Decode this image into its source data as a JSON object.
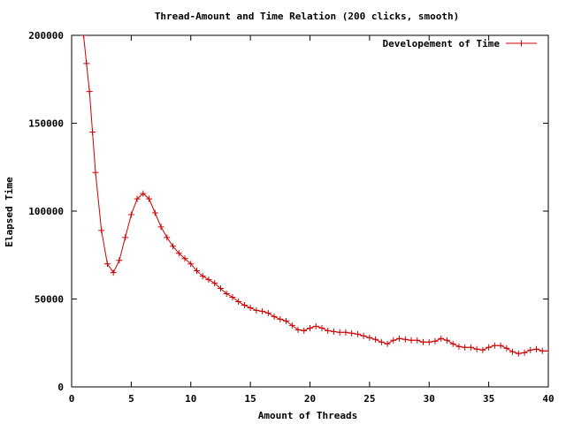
{
  "chart_data": {
    "type": "line",
    "title": "Thread-Amount and Time Relation (200 clicks, smooth)",
    "xlabel": "Amount of Threads",
    "ylabel": "Elapsed Time",
    "xlim": [
      0,
      40
    ],
    "ylim": [
      0,
      200000
    ],
    "xticks": [
      "0",
      "5",
      "10",
      "15",
      "20",
      "25",
      "30",
      "35",
      "40"
    ],
    "yticks": [
      "0",
      "50000",
      "100000",
      "150000",
      "200000"
    ],
    "grid": false,
    "legend_position": "top-right",
    "series": [
      {
        "name": "Developement of Time",
        "color": "#cc0000",
        "marker": "plus",
        "x": [
          1.0,
          1.25,
          1.5,
          1.75,
          2.0,
          2.5,
          3.0,
          3.5,
          4.0,
          4.5,
          5.0,
          5.5,
          6.0,
          6.5,
          7.0,
          7.5,
          8.0,
          8.5,
          9.0,
          9.5,
          10.0,
          10.5,
          11.0,
          11.5,
          12.0,
          12.5,
          13.0,
          13.5,
          14.0,
          14.5,
          15.0,
          15.5,
          16.0,
          16.5,
          17.0,
          17.5,
          18.0,
          18.5,
          19.0,
          19.5,
          20.0,
          20.5,
          21.0,
          21.5,
          22.0,
          22.5,
          23.0,
          23.5,
          24.0,
          24.5,
          25.0,
          25.5,
          26.0,
          26.5,
          27.0,
          27.5,
          28.0,
          28.5,
          29.0,
          29.5,
          30.0,
          30.5,
          31.0,
          31.5,
          32.0,
          32.5,
          33.0,
          33.5,
          34.0,
          34.5,
          35.0,
          35.5,
          36.0,
          36.5,
          37.0,
          37.5,
          38.0,
          38.5,
          39.0,
          39.5,
          40.0
        ],
        "y": [
          200000,
          184000,
          168000,
          145000,
          122000,
          89000,
          70000,
          65000,
          72000,
          85000,
          98000,
          107000,
          110000,
          107000,
          99000,
          91000,
          85000,
          80000,
          76000,
          73000,
          70000,
          66000,
          63000,
          61000,
          59000,
          56000,
          53000,
          51000,
          48500,
          46500,
          45000,
          43500,
          43000,
          42000,
          40000,
          38500,
          37500,
          35000,
          32500,
          32000,
          33500,
          34500,
          33500,
          32000,
          31500,
          31000,
          31000,
          30500,
          30000,
          29000,
          28000,
          27000,
          25500,
          24500,
          26500,
          27500,
          27000,
          26500,
          26500,
          25500,
          25500,
          26000,
          27500,
          26500,
          24500,
          23000,
          22500,
          22500,
          21500,
          21000,
          22500,
          23500,
          23500,
          22000,
          20000,
          19000,
          19500,
          21000,
          21500,
          20500,
          20500
        ]
      }
    ]
  }
}
